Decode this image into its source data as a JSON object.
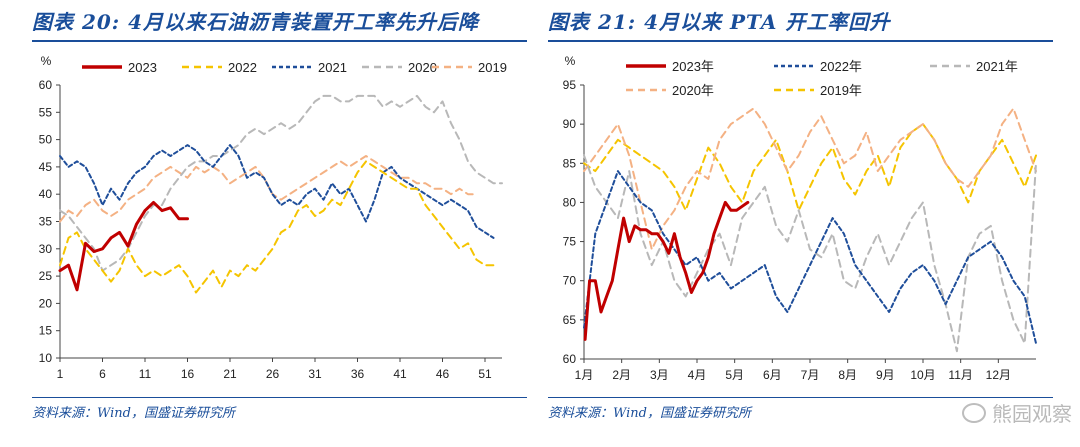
{
  "charts": [
    {
      "title": "图表 20:  4月以来石油沥青装置开工率先升后降",
      "source": "资料来源：Wind，国盛证券研究所",
      "y_unit": "%",
      "x_ticks": [
        "1",
        "6",
        "11",
        "16",
        "21",
        "26",
        "31",
        "36",
        "41",
        "46",
        "51"
      ],
      "y_ticks": [
        "10",
        "15",
        "20",
        "25",
        "30",
        "35",
        "40",
        "45",
        "50",
        "55",
        "60"
      ]
    },
    {
      "title": "图表 21:  4月以来 PTA 开工率回升",
      "source": "资料来源：Wind，国盛证券研究所",
      "y_unit": "%",
      "x_ticks": [
        "1月",
        "2月",
        "3月",
        "4月",
        "5月",
        "6月",
        "7月",
        "8月",
        "9月",
        "10月",
        "11月",
        "12月"
      ],
      "y_ticks": [
        "60",
        "65",
        "70",
        "75",
        "80",
        "85",
        "90",
        "95"
      ]
    }
  ],
  "watermark": "熊园观察",
  "chart_data": [
    {
      "type": "line",
      "title": "图表 20:  4月以来石油沥青装置开工率先升后降",
      "xlabel": "",
      "ylabel": "%",
      "x_range": [
        1,
        53
      ],
      "ylim": [
        10,
        60
      ],
      "grid": false,
      "legend_position": "top",
      "series": [
        {
          "name": "2023",
          "color": "#c00000",
          "width": 3,
          "dash": "",
          "x": [
            1,
            2,
            3,
            4,
            5,
            6,
            7,
            8,
            9,
            10,
            11,
            12,
            13,
            14,
            15,
            16
          ],
          "values": [
            26,
            27,
            22.5,
            31,
            29.5,
            30,
            32,
            33,
            30.5,
            34.5,
            37,
            38.5,
            37,
            37.5,
            35.5,
            35.5
          ]
        },
        {
          "name": "2022",
          "color": "#f5c400",
          "width": 2,
          "dash": "7,5",
          "x": [
            1,
            2,
            3,
            4,
            5,
            6,
            7,
            8,
            9,
            10,
            11,
            12,
            13,
            14,
            15,
            16,
            17,
            18,
            19,
            20,
            21,
            22,
            23,
            24,
            25,
            26,
            27,
            28,
            29,
            30,
            31,
            32,
            33,
            34,
            35,
            36,
            37,
            38,
            39,
            40,
            41,
            42,
            43,
            44,
            45,
            46,
            47,
            48,
            49,
            50,
            51,
            52
          ],
          "values": [
            27,
            32,
            33,
            30,
            28,
            26,
            24,
            26,
            30,
            27,
            25,
            26,
            25,
            26,
            27,
            25,
            22,
            24,
            26,
            23,
            26,
            25,
            27,
            26,
            28,
            30,
            33,
            34,
            37,
            38,
            36,
            37,
            39,
            38,
            41,
            44,
            46,
            45,
            44,
            43,
            42,
            41,
            41,
            38,
            36,
            34,
            32,
            30,
            31,
            28,
            27,
            27
          ]
        },
        {
          "name": "2021",
          "color": "#1f4e9a",
          "width": 2,
          "dash": "4,3",
          "x": [
            1,
            2,
            3,
            4,
            5,
            6,
            7,
            8,
            9,
            10,
            11,
            12,
            13,
            14,
            15,
            16,
            17,
            18,
            19,
            20,
            21,
            22,
            23,
            24,
            25,
            26,
            27,
            28,
            29,
            30,
            31,
            32,
            33,
            34,
            35,
            36,
            37,
            38,
            39,
            40,
            41,
            42,
            43,
            44,
            45,
            46,
            47,
            48,
            49,
            50,
            51,
            52
          ],
          "values": [
            47,
            45,
            46,
            45,
            42,
            38,
            41,
            39,
            42,
            44,
            45,
            47,
            48,
            47,
            48,
            49,
            48,
            46,
            45,
            47,
            49,
            47,
            43,
            44,
            43,
            40,
            38,
            39,
            38,
            40,
            41,
            39,
            42,
            40,
            41,
            38,
            35,
            39,
            44,
            45,
            43,
            42,
            41,
            40,
            39,
            38,
            39,
            38,
            37,
            34,
            33,
            32
          ]
        },
        {
          "name": "2020",
          "color": "#b8b8b8",
          "width": 2,
          "dash": "7,5",
          "x": [
            1,
            2,
            3,
            4,
            5,
            6,
            7,
            8,
            9,
            10,
            11,
            12,
            13,
            14,
            15,
            16,
            17,
            18,
            19,
            20,
            21,
            22,
            23,
            24,
            25,
            26,
            27,
            28,
            29,
            30,
            31,
            32,
            33,
            34,
            35,
            36,
            37,
            38,
            39,
            40,
            41,
            42,
            43,
            44,
            45,
            46,
            47,
            48,
            49,
            50,
            51,
            52,
            53
          ],
          "values": [
            37,
            36,
            34,
            32,
            30,
            26,
            27,
            28,
            30,
            33,
            36,
            38,
            38,
            41,
            43,
            45,
            46,
            46,
            47,
            47,
            48,
            49,
            51,
            52,
            51,
            52,
            53,
            52,
            53,
            55,
            57,
            58,
            58,
            57,
            57,
            58,
            58,
            58,
            56,
            57,
            56,
            57,
            58,
            56,
            55,
            57,
            53,
            50,
            46,
            44,
            43,
            42,
            42
          ]
        },
        {
          "name": "2019",
          "color": "#f4b183",
          "width": 2,
          "dash": "7,5",
          "x": [
            1,
            2,
            3,
            4,
            5,
            6,
            7,
            8,
            9,
            10,
            11,
            12,
            13,
            14,
            15,
            16,
            17,
            18,
            19,
            20,
            21,
            22,
            23,
            24,
            25,
            26,
            27,
            28,
            29,
            30,
            31,
            32,
            33,
            34,
            35,
            36,
            37,
            38,
            39,
            40,
            41,
            42,
            43,
            44,
            45,
            46,
            47,
            48,
            49,
            50
          ],
          "values": [
            35,
            37,
            36,
            38,
            39,
            37,
            36,
            37,
            39,
            40,
            41,
            43,
            44,
            45,
            44,
            43,
            45,
            44,
            45,
            44,
            42,
            43,
            44,
            45,
            43,
            40,
            39,
            40,
            41,
            42,
            43,
            44,
            45,
            46,
            45,
            46,
            47,
            46,
            45,
            44,
            43,
            43,
            42,
            42,
            41,
            41,
            40,
            41,
            40,
            40
          ]
        }
      ]
    },
    {
      "type": "line",
      "title": "图表 21:  4月以来 PTA 开工率回升",
      "xlabel": "",
      "ylabel": "%",
      "x_range": [
        0,
        12
      ],
      "x_unit": "months since 1月",
      "ylim": [
        60,
        95
      ],
      "grid": false,
      "legend_position": "top",
      "series": [
        {
          "name": "2023年",
          "color": "#c00000",
          "width": 3,
          "dash": "",
          "x": [
            0.03,
            0.15,
            0.3,
            0.45,
            0.6,
            0.75,
            0.9,
            1.05,
            1.2,
            1.35,
            1.5,
            1.65,
            1.8,
            1.95,
            2.1,
            2.25,
            2.4,
            2.55,
            2.7,
            2.85,
            3.0,
            3.15,
            3.3,
            3.45,
            3.6,
            3.75,
            3.9,
            4.05,
            4.2,
            4.35
          ],
          "values": [
            62.5,
            70,
            70,
            66,
            68,
            70,
            74,
            78,
            75,
            77,
            76.5,
            76.5,
            76,
            76,
            75,
            73.5,
            76,
            73,
            71,
            68.5,
            70,
            71,
            73,
            76,
            78,
            80,
            79,
            79,
            79.5,
            80
          ]
        },
        {
          "name": "2022年",
          "color": "#1f4e9a",
          "width": 2,
          "dash": "4,3",
          "x": [
            0.0,
            0.3,
            0.6,
            0.9,
            1.2,
            1.5,
            1.8,
            2.1,
            2.4,
            2.7,
            3.0,
            3.3,
            3.6,
            3.9,
            4.2,
            4.5,
            4.8,
            5.1,
            5.4,
            5.7,
            6.0,
            6.3,
            6.6,
            6.9,
            7.2,
            7.5,
            7.8,
            8.1,
            8.4,
            8.7,
            9.0,
            9.3,
            9.6,
            9.9,
            10.2,
            10.5,
            10.8,
            11.1,
            11.4,
            11.7,
            12.0
          ],
          "values": [
            64,
            76,
            80,
            84,
            82,
            80,
            79,
            76,
            74,
            72,
            73,
            70,
            71,
            69,
            70,
            71,
            72,
            68,
            66,
            69,
            72,
            75,
            78,
            76,
            72,
            70,
            68,
            66,
            69,
            71,
            72,
            70,
            67,
            70,
            73,
            74,
            75,
            73,
            70,
            68,
            62
          ]
        },
        {
          "name": "2021年",
          "color": "#b8b8b8",
          "width": 2,
          "dash": "7,5",
          "x": [
            0.0,
            0.3,
            0.6,
            0.9,
            1.2,
            1.5,
            1.8,
            2.1,
            2.4,
            2.7,
            3.0,
            3.3,
            3.6,
            3.9,
            4.2,
            4.5,
            4.8,
            5.1,
            5.4,
            5.7,
            6.0,
            6.3,
            6.6,
            6.9,
            7.2,
            7.5,
            7.8,
            8.1,
            8.4,
            8.7,
            9.0,
            9.3,
            9.6,
            9.9,
            10.2,
            10.5,
            10.8,
            11.1,
            11.4,
            11.7,
            12.0
          ],
          "values": [
            86,
            82,
            80,
            78,
            84,
            76,
            72,
            75,
            70,
            68,
            71,
            74,
            76,
            72,
            78,
            80,
            82,
            77,
            75,
            79,
            74,
            73,
            76,
            70,
            69,
            73,
            76,
            72,
            75,
            78,
            80,
            72,
            67,
            61,
            73,
            76,
            77,
            70,
            65,
            62,
            85
          ]
        },
        {
          "name": "2020年",
          "color": "#f4b183",
          "width": 2,
          "dash": "7,5",
          "x": [
            0.0,
            0.3,
            0.6,
            0.9,
            1.2,
            1.5,
            1.8,
            2.1,
            2.4,
            2.7,
            3.0,
            3.3,
            3.6,
            3.9,
            4.2,
            4.5,
            4.8,
            5.1,
            5.4,
            5.7,
            6.0,
            6.3,
            6.6,
            6.9,
            7.2,
            7.5,
            7.8,
            8.1,
            8.4,
            8.7,
            9.0,
            9.3,
            9.6,
            9.9,
            10.2,
            10.5,
            10.8,
            11.1,
            11.4,
            11.7,
            12.0
          ],
          "values": [
            84,
            86,
            88,
            90,
            86,
            80,
            74,
            77,
            79,
            82,
            84,
            83,
            88,
            90,
            91,
            92,
            90,
            87,
            84,
            86,
            89,
            91,
            88,
            85,
            86,
            89,
            84,
            86,
            88,
            89,
            90,
            88,
            85,
            83,
            82,
            84,
            86,
            90,
            92,
            88,
            84
          ]
        },
        {
          "name": "2019年",
          "color": "#f5c400",
          "width": 2,
          "dash": "7,5",
          "x": [
            0.0,
            0.3,
            0.6,
            0.9,
            1.2,
            1.5,
            1.8,
            2.1,
            2.4,
            2.7,
            3.0,
            3.3,
            3.6,
            3.9,
            4.2,
            4.5,
            4.8,
            5.1,
            5.4,
            5.7,
            6.0,
            6.3,
            6.6,
            6.9,
            7.2,
            7.5,
            7.8,
            8.1,
            8.4,
            8.7,
            9.0,
            9.3,
            9.6,
            9.9,
            10.2,
            10.5,
            10.8,
            11.1,
            11.4,
            11.7,
            12.0
          ],
          "values": [
            85,
            84,
            86,
            88,
            87,
            86,
            85,
            84,
            82,
            79,
            83,
            87,
            85,
            82,
            80,
            84,
            86,
            88,
            84,
            79,
            82,
            85,
            87,
            83,
            81,
            84,
            86,
            82,
            87,
            89,
            90,
            88,
            85,
            83,
            80,
            84,
            86,
            88,
            85,
            82,
            86
          ]
        }
      ]
    }
  ]
}
